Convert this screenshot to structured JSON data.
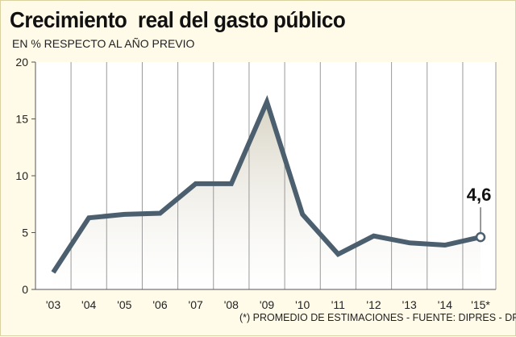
{
  "title": "Crecimiento  real del gasto público",
  "subtitle": "EN % RESPECTO AL AÑO PREVIO",
  "footnote": "(*) PROMEDIO DE ESTIMACIONES - FUENTE: DIPRES - DF",
  "colors": {
    "line": "#4b5f6e",
    "grid": "#999999",
    "fill_top": "#d8d4c4",
    "plot_bg": "#ffffff",
    "background": "#fffbe8"
  },
  "chart_data": {
    "type": "line",
    "title": "Crecimiento  real del gasto público",
    "subtitle": "EN % RESPECTO AL AÑO PREVIO",
    "categories": [
      "'03",
      "'04",
      "'05",
      "'06",
      "'07",
      "'08",
      "'09",
      "'10",
      "'11",
      "'12",
      "'13",
      "'14",
      "'15*"
    ],
    "values": [
      1.5,
      6.3,
      6.6,
      6.7,
      9.3,
      9.3,
      16.5,
      6.6,
      3.1,
      4.7,
      4.1,
      3.9,
      4.6
    ],
    "ylim": [
      0,
      20
    ],
    "yticks": [
      0,
      5,
      10,
      15,
      20
    ],
    "grid": "vertical",
    "annotation": {
      "category": "'15*",
      "text": "4,6"
    }
  }
}
